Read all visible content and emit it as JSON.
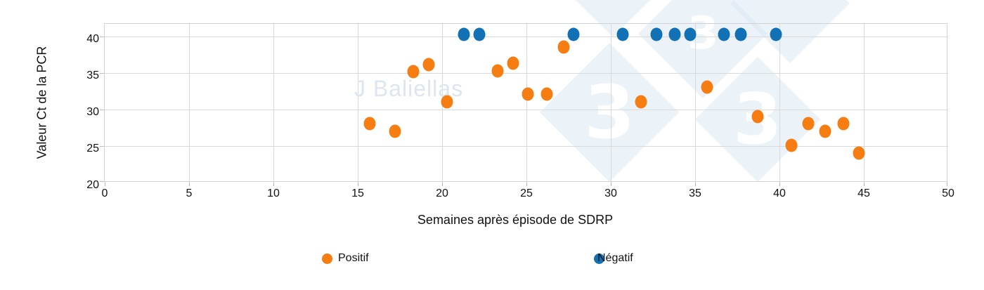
{
  "watermark": {
    "text": "J Baliellas",
    "logo_digit": "3"
  },
  "chart_data": {
    "type": "scatter",
    "title": "",
    "xlabel": "Semaines après épisode de SDRP",
    "ylabel": "Valeur Ct de la PCR",
    "xlim": [
      0,
      50
    ],
    "ylim": [
      20,
      41.7
    ],
    "xticks": [
      0,
      5,
      10,
      15,
      20,
      25,
      30,
      35,
      40,
      45,
      50
    ],
    "yticks": [
      20,
      25,
      30,
      35,
      40
    ],
    "grid": true,
    "legend_position": "bottom",
    "series": [
      {
        "name": "Positif",
        "color": "#F57D11",
        "marker": "circle",
        "points": [
          [
            15.7,
            28.1
          ],
          [
            17.2,
            27.0
          ],
          [
            18.3,
            35.2
          ],
          [
            19.2,
            36.1
          ],
          [
            20.3,
            31.0
          ],
          [
            23.3,
            35.3
          ],
          [
            24.2,
            36.3
          ],
          [
            25.1,
            32.1
          ],
          [
            26.2,
            32.1
          ],
          [
            27.2,
            38.5
          ],
          [
            31.8,
            31.0
          ],
          [
            35.7,
            33.1
          ],
          [
            38.7,
            29.0
          ],
          [
            40.7,
            25.1
          ],
          [
            41.7,
            28.1
          ],
          [
            42.7,
            27.0
          ],
          [
            43.8,
            28.1
          ],
          [
            44.7,
            24.0
          ]
        ]
      },
      {
        "name": "Négatif",
        "color": "#1270B5",
        "marker": "circle",
        "points": [
          [
            21.3,
            40.3
          ],
          [
            22.2,
            40.3
          ],
          [
            27.8,
            40.3
          ],
          [
            30.7,
            40.3
          ],
          [
            32.7,
            40.3
          ],
          [
            33.8,
            40.3
          ],
          [
            34.7,
            40.3
          ],
          [
            36.7,
            40.3
          ],
          [
            37.7,
            40.3
          ],
          [
            39.8,
            40.3
          ]
        ]
      }
    ]
  }
}
